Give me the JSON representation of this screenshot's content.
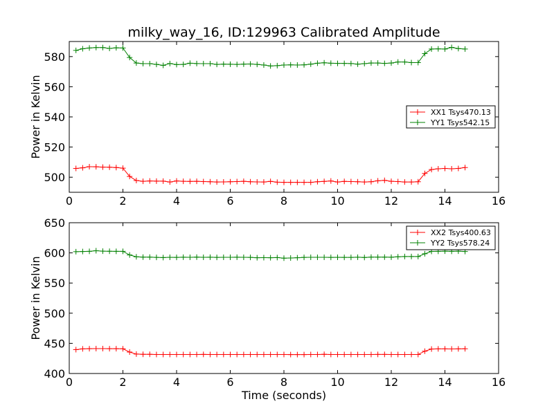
{
  "chart_data": [
    {
      "type": "line",
      "title": "milky_way_16, ID:129963 Calibrated Amplitude",
      "xlabel": "",
      "ylabel": "Power in Kelvin",
      "xlim": [
        0,
        16
      ],
      "ylim": [
        490,
        590
      ],
      "xticks": [
        0,
        2,
        4,
        6,
        8,
        10,
        12,
        14,
        16
      ],
      "yticks": [
        500,
        520,
        540,
        560,
        580
      ],
      "grid": false,
      "legend_position": "center-right",
      "x": [
        0.25,
        0.5,
        0.75,
        1.0,
        1.25,
        1.5,
        1.75,
        2.0,
        2.25,
        2.5,
        2.75,
        3.0,
        3.25,
        3.5,
        3.75,
        4.0,
        4.25,
        4.5,
        4.75,
        5.0,
        5.25,
        5.5,
        5.75,
        6.0,
        6.25,
        6.5,
        6.75,
        7.0,
        7.25,
        7.5,
        7.75,
        8.0,
        8.25,
        8.5,
        8.75,
        9.0,
        9.25,
        9.5,
        9.75,
        10.0,
        10.25,
        10.5,
        10.75,
        11.0,
        11.25,
        11.5,
        11.75,
        12.0,
        12.25,
        12.5,
        12.75,
        13.0,
        13.25,
        13.5,
        13.75,
        14.0,
        14.25,
        14.5,
        14.75
      ],
      "series": [
        {
          "name": "XX1 Tsys470.13",
          "color": "#ff0000",
          "values": [
            505.8,
            506.2,
            507.0,
            506.9,
            506.7,
            506.6,
            506.4,
            506.0,
            500.5,
            497.8,
            497.3,
            497.5,
            497.4,
            497.4,
            496.8,
            497.5,
            497.3,
            497.2,
            497.3,
            497.1,
            497.0,
            496.8,
            496.9,
            497.0,
            497.1,
            497.3,
            497.0,
            496.9,
            496.8,
            497.2,
            496.7,
            496.6,
            496.6,
            496.6,
            496.6,
            496.6,
            497.0,
            497.2,
            497.5,
            496.8,
            497.2,
            497.1,
            497.0,
            496.8,
            497.0,
            497.6,
            497.9,
            497.3,
            497.1,
            496.8,
            496.8,
            497.0,
            502.5,
            505.1,
            505.6,
            505.8,
            505.6,
            505.8,
            506.4
          ]
        },
        {
          "name": "YY1 Tsys542.15",
          "color": "#008000",
          "values": [
            584.1,
            585.2,
            585.7,
            586.0,
            586.0,
            585.4,
            585.8,
            585.7,
            579.4,
            575.7,
            575.3,
            575.3,
            574.8,
            574.2,
            575.4,
            574.7,
            574.8,
            575.6,
            575.4,
            575.3,
            575.3,
            574.8,
            575.0,
            574.9,
            574.8,
            575.0,
            575.1,
            574.8,
            574.4,
            573.8,
            574.0,
            574.4,
            574.5,
            574.4,
            574.5,
            575.0,
            575.6,
            575.9,
            575.6,
            575.5,
            575.5,
            575.4,
            575.0,
            575.3,
            575.7,
            575.7,
            575.5,
            575.7,
            576.4,
            576.4,
            576.0,
            576.0,
            582.0,
            585.0,
            585.1,
            585.0,
            586.1,
            585.3,
            585.0
          ]
        }
      ]
    },
    {
      "type": "line",
      "title": "",
      "xlabel": "Time (seconds)",
      "ylabel": "Power in Kelvin",
      "xlim": [
        0,
        16
      ],
      "ylim": [
        400,
        650
      ],
      "xticks": [
        0,
        2,
        4,
        6,
        8,
        10,
        12,
        14,
        16
      ],
      "yticks": [
        400,
        450,
        500,
        550,
        600,
        650
      ],
      "grid": false,
      "legend_position": "top-right",
      "x": [
        0.25,
        0.5,
        0.75,
        1.0,
        1.25,
        1.5,
        1.75,
        2.0,
        2.25,
        2.5,
        2.75,
        3.0,
        3.25,
        3.5,
        3.75,
        4.0,
        4.25,
        4.5,
        4.75,
        5.0,
        5.25,
        5.5,
        5.75,
        6.0,
        6.25,
        6.5,
        6.75,
        7.0,
        7.25,
        7.5,
        7.75,
        8.0,
        8.25,
        8.5,
        8.75,
        9.0,
        9.25,
        9.5,
        9.75,
        10.0,
        10.25,
        10.5,
        10.75,
        11.0,
        11.25,
        11.5,
        11.75,
        12.0,
        12.25,
        12.5,
        12.75,
        13.0,
        13.25,
        13.5,
        13.75,
        14.0,
        14.25,
        14.5,
        14.75
      ],
      "series": [
        {
          "name": "XX2 Tsys400.63",
          "color": "#ff0000",
          "values": [
            439.5,
            440.8,
            441.2,
            441.3,
            441.3,
            441.2,
            441.2,
            441.0,
            435.5,
            432.2,
            431.8,
            431.8,
            431.6,
            431.6,
            431.6,
            431.6,
            431.5,
            431.6,
            431.6,
            431.7,
            431.5,
            431.5,
            431.5,
            431.6,
            431.5,
            431.5,
            431.6,
            431.5,
            431.5,
            431.6,
            431.5,
            431.5,
            431.4,
            431.4,
            431.4,
            431.5,
            431.6,
            431.8,
            431.6,
            431.5,
            431.5,
            431.5,
            431.5,
            431.5,
            431.5,
            431.7,
            431.7,
            431.6,
            431.5,
            431.5,
            431.5,
            431.5,
            437.0,
            440.6,
            440.8,
            440.8,
            440.7,
            440.8,
            441.0
          ]
        },
        {
          "name": "YY2 Tsys578.24",
          "color": "#008000",
          "values": [
            602.0,
            602.3,
            602.6,
            603.5,
            602.9,
            602.7,
            602.5,
            602.6,
            596.5,
            593.5,
            593.0,
            593.0,
            592.5,
            592.3,
            592.6,
            592.5,
            592.8,
            592.6,
            593.0,
            592.6,
            592.8,
            592.5,
            592.6,
            592.6,
            592.8,
            592.6,
            592.5,
            592.0,
            592.1,
            592.0,
            592.2,
            591.2,
            591.5,
            592.0,
            592.5,
            592.6,
            592.7,
            592.6,
            592.5,
            592.7,
            592.5,
            592.5,
            592.8,
            592.4,
            593.0,
            593.0,
            593.0,
            592.8,
            593.5,
            594.0,
            594.0,
            594.0,
            598.5,
            602.4,
            602.5,
            602.8,
            602.6,
            602.8,
            602.3
          ]
        }
      ]
    }
  ]
}
